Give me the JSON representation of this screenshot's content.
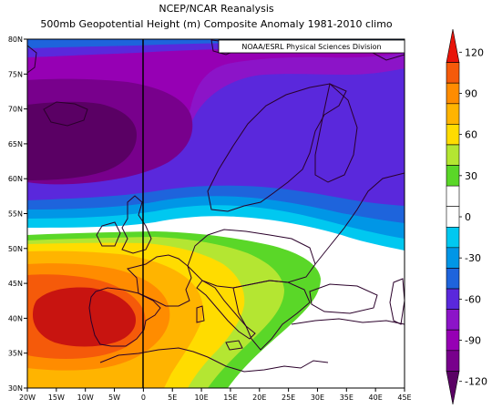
{
  "titles": {
    "line1": "NCEP/NCAR Reanalysis",
    "line2": "500mb Geopotential Height (m) Composite Anomaly 1981-2010 climo"
  },
  "credit": "NOAA/ESRL Physical Sciences Division",
  "chart_data": {
    "type": "heatmap",
    "projection": "cylindrical",
    "lon_range": [
      -20,
      45
    ],
    "lat_range": [
      30,
      80
    ],
    "lat_ticks": [
      "80N",
      "75N",
      "70N",
      "65N",
      "60N",
      "55N",
      "50N",
      "45N",
      "40N",
      "35N",
      "30N"
    ],
    "lon_ticks": [
      "20W",
      "15W",
      "10W",
      "5W",
      "0",
      "5E",
      "10E",
      "15E",
      "20E",
      "25E",
      "30E",
      "35E",
      "40E",
      "45E"
    ],
    "colorbar": {
      "labels": [
        "120",
        "90",
        "60",
        "30",
        "0",
        "-30",
        "-60",
        "-90",
        "-120"
      ],
      "levels": [
        {
          "value": 120,
          "color": "#e8140a"
        },
        {
          "value": 105,
          "color": "#f55a0a"
        },
        {
          "value": 90,
          "color": "#ff8c00"
        },
        {
          "value": 75,
          "color": "#ffb400"
        },
        {
          "value": 60,
          "color": "#ffdc00"
        },
        {
          "value": 45,
          "color": "#b4e632"
        },
        {
          "value": 30,
          "color": "#5ad728"
        },
        {
          "value": 15,
          "color": "#ffffff"
        },
        {
          "value": 0,
          "color": "#ffffff"
        },
        {
          "value": -15,
          "color": "#00c8f0"
        },
        {
          "value": -30,
          "color": "#0096e6"
        },
        {
          "value": -45,
          "color": "#1e64dc"
        },
        {
          "value": -60,
          "color": "#5a28dc"
        },
        {
          "value": -75,
          "color": "#8c14c8"
        },
        {
          "value": -90,
          "color": "#9600b4"
        },
        {
          "value": -105,
          "color": "#78008c"
        },
        {
          "value": -120,
          "color": "#5a0064"
        }
      ]
    },
    "features": [
      {
        "name": "negative anomaly center",
        "lon": -13,
        "lat": 65,
        "value": -120
      },
      {
        "name": "positive anomaly center",
        "lon": -8,
        "lat": 41,
        "value": 120
      }
    ]
  }
}
